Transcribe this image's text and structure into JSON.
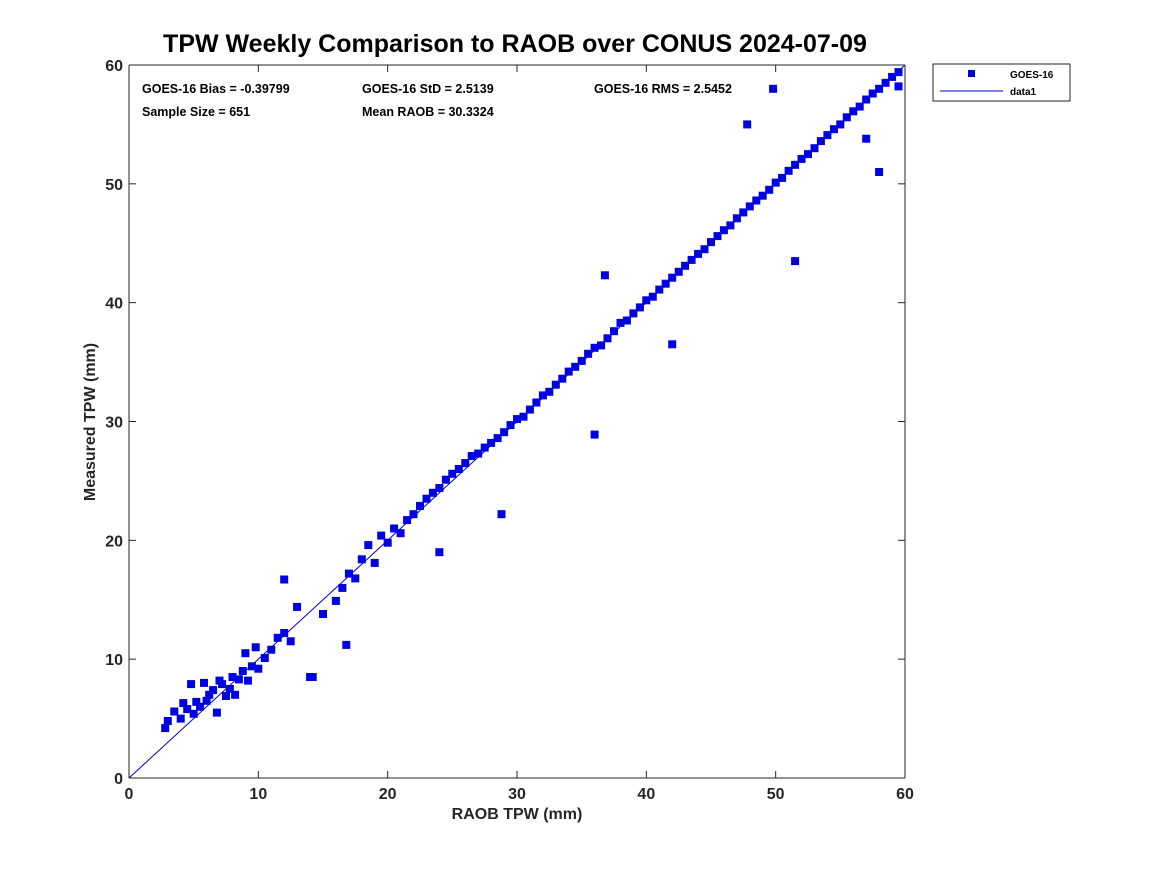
{
  "chart_data": {
    "type": "scatter",
    "title": "TPW Weekly Comparison to RAOB over CONUS 2024-07-09",
    "xlabel": "RAOB TPW (mm)",
    "ylabel": "Measured TPW (mm)",
    "xlim": [
      0,
      60
    ],
    "ylim": [
      0,
      60
    ],
    "xticks": [
      "0",
      "10",
      "20",
      "30",
      "40",
      "50",
      "60"
    ],
    "yticks": [
      "0",
      "10",
      "20",
      "30",
      "40",
      "50",
      "60"
    ],
    "grid": false,
    "legend_position": "outside-top-right",
    "stats": {
      "bias": "GOES-16 Bias = -0.39799",
      "std": "GOES-16 StD = 2.5139",
      "rms": "GOES-16 RMS = 2.5452",
      "sample": "Sample Size = 651",
      "mean": "Mean RAOB = 30.3324"
    },
    "legend": [
      {
        "name": "GOES-16",
        "marker": "square",
        "color": "#0000e0"
      },
      {
        "name": "data1",
        "marker": "line",
        "color": "#0000cc"
      }
    ],
    "reference_line": {
      "name": "data1",
      "x": [
        0,
        60
      ],
      "y": [
        0,
        60
      ],
      "color": "#0000cc"
    },
    "series": [
      {
        "name": "GOES-16",
        "color": "#0000e0",
        "x": [
          2.8,
          3.0,
          3.5,
          4.0,
          4.2,
          4.5,
          4.8,
          5.0,
          5.2,
          5.5,
          5.8,
          6.0,
          6.2,
          6.5,
          6.8,
          7.0,
          7.2,
          7.5,
          7.8,
          8.0,
          8.2,
          8.5,
          8.8,
          9.0,
          9.2,
          9.5,
          9.8,
          10.0,
          10.5,
          11.0,
          11.5,
          12.0,
          12.0,
          12.5,
          13.0,
          14.0,
          15.0,
          16.0,
          16.5,
          17.0,
          17.5,
          18.0,
          18.5,
          19.0,
          19.5,
          20.0,
          20.5,
          21.0,
          21.5,
          22.0,
          22.5,
          23.0,
          23.5,
          24.0,
          24.5,
          25.0,
          25.5,
          26.0,
          26.5,
          27.0,
          27.5,
          28.0,
          28.5,
          29.0,
          29.5,
          30.0,
          30.5,
          31.0,
          31.5,
          32.0,
          32.5,
          33.0,
          33.5,
          34.0,
          34.5,
          35.0,
          35.5,
          36.0,
          36.5,
          37.0,
          37.5,
          38.0,
          38.5,
          39.0,
          39.5,
          40.0,
          40.5,
          41.0,
          41.5,
          42.0,
          42.5,
          43.0,
          43.5,
          44.0,
          44.5,
          45.0,
          45.5,
          46.0,
          46.5,
          47.0,
          47.5,
          48.0,
          48.5,
          49.0,
          49.5,
          50.0,
          50.5,
          51.0,
          51.5,
          52.0,
          52.5,
          53.0,
          53.5,
          54.0,
          54.5,
          55.0,
          55.5,
          56.0,
          56.5,
          57.0,
          57.5,
          58.0,
          58.5,
          59.0,
          59.5,
          49.8,
          47.8,
          36.8,
          14.2,
          16.8,
          24.0,
          28.8,
          36.0,
          42.0,
          51.5,
          58.0,
          59.5,
          57.0
        ],
        "y": [
          4.2,
          4.8,
          5.6,
          5.0,
          6.3,
          5.8,
          7.9,
          5.4,
          6.4,
          6.0,
          8.0,
          6.5,
          7.0,
          7.4,
          5.5,
          8.2,
          7.9,
          6.9,
          7.5,
          8.5,
          7.0,
          8.3,
          9.0,
          10.5,
          8.2,
          9.4,
          11.0,
          9.2,
          10.1,
          10.8,
          11.8,
          16.7,
          12.2,
          11.5,
          14.4,
          8.5,
          13.8,
          14.9,
          16.0,
          17.2,
          16.8,
          18.4,
          19.6,
          18.1,
          20.4,
          19.8,
          21.0,
          20.6,
          21.7,
          22.2,
          22.9,
          23.5,
          24.0,
          24.4,
          25.1,
          25.6,
          26.0,
          26.5,
          27.1,
          27.3,
          27.8,
          28.2,
          28.6,
          29.1,
          29.7,
          30.2,
          30.4,
          31.0,
          31.6,
          32.2,
          32.5,
          33.1,
          33.6,
          34.2,
          34.6,
          35.1,
          35.7,
          36.2,
          36.4,
          37.0,
          37.6,
          38.3,
          38.5,
          39.1,
          39.6,
          40.2,
          40.5,
          41.1,
          41.6,
          42.1,
          42.6,
          43.1,
          43.6,
          44.1,
          44.5,
          45.1,
          45.6,
          46.1,
          46.5,
          47.1,
          47.6,
          48.1,
          48.6,
          49.0,
          49.5,
          50.1,
          50.5,
          51.1,
          51.6,
          52.1,
          52.5,
          53.0,
          53.6,
          54.1,
          54.6,
          55.0,
          55.6,
          56.1,
          56.5,
          57.1,
          57.6,
          58.0,
          58.5,
          59.0,
          59.4,
          58.0,
          55.0,
          42.3,
          8.5,
          11.2,
          19.0,
          22.2,
          28.9,
          36.5,
          43.5,
          51.0,
          58.2,
          53.8
        ]
      }
    ]
  }
}
